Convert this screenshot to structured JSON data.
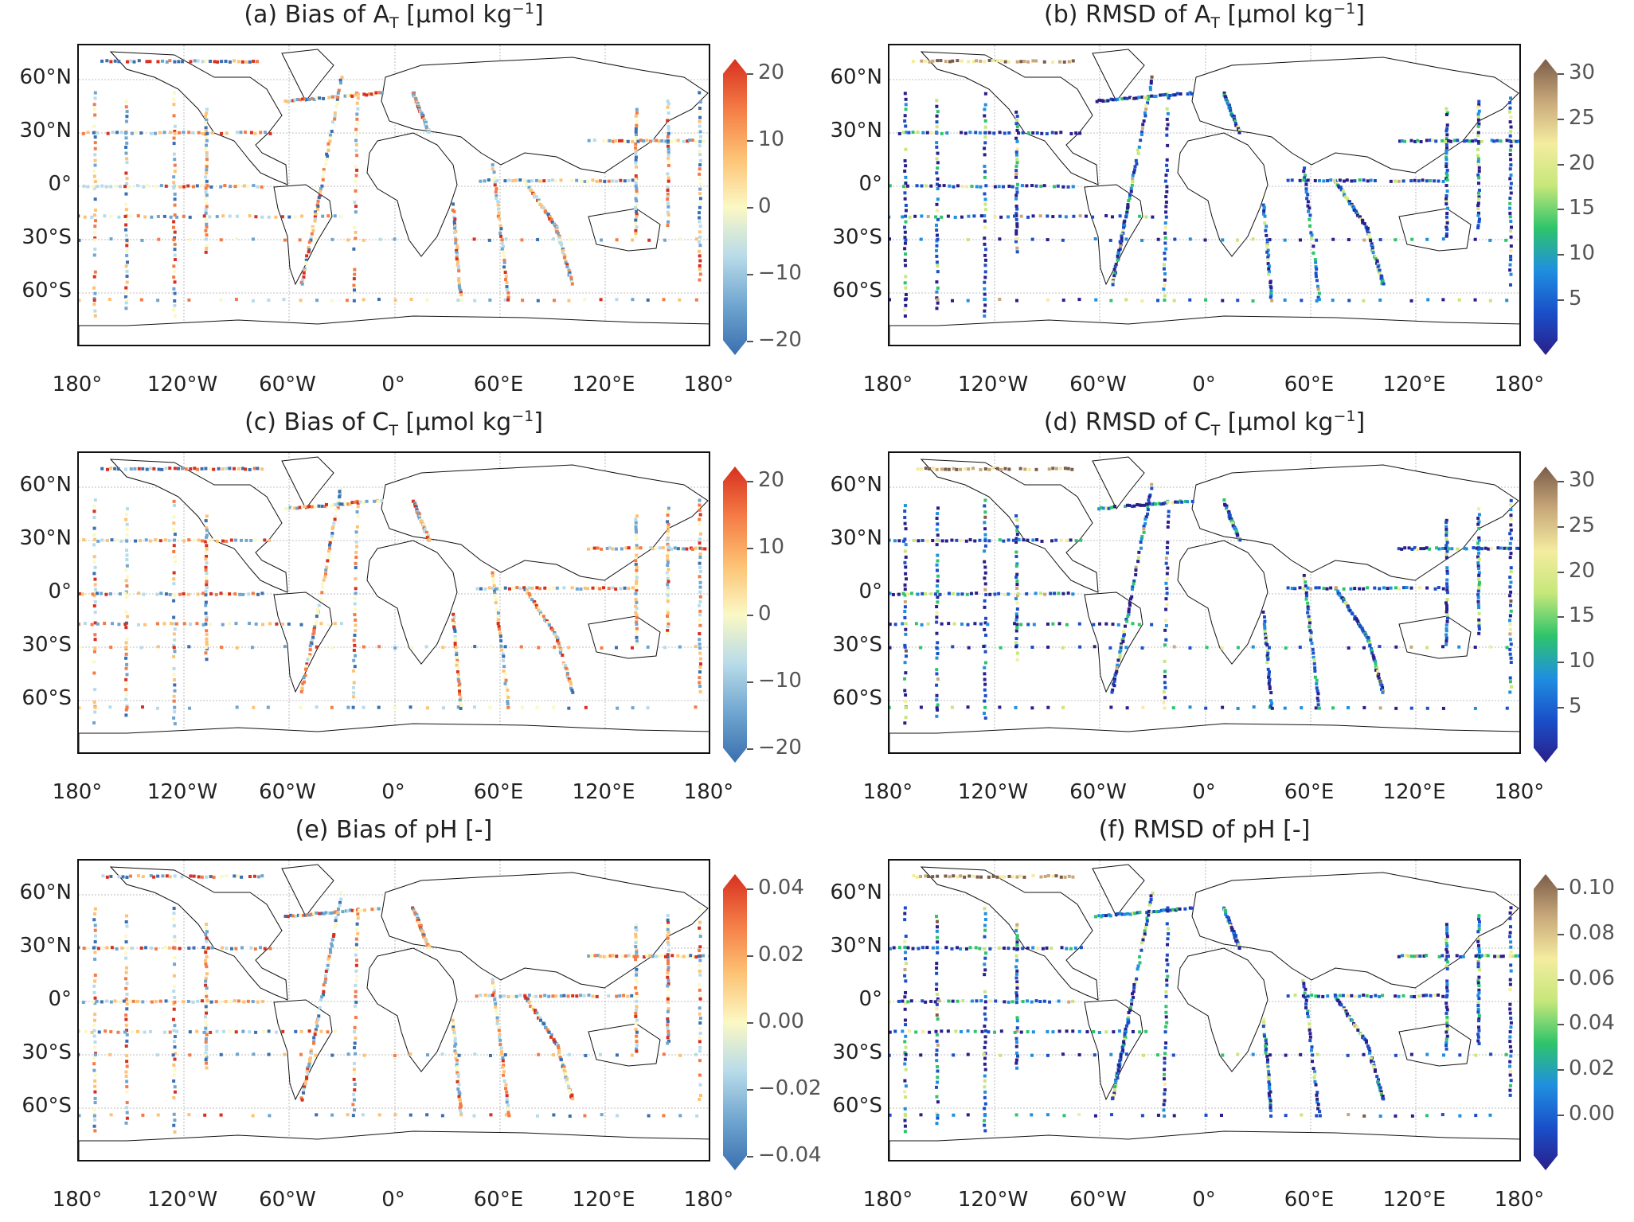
{
  "panels": [
    {
      "id": "a",
      "title_pre": "(a) Bias of A",
      "title_sub": "T",
      "title_mid": " [μmol kg",
      "title_sup": "−1",
      "title_post": "]",
      "cmap": "bias",
      "ticks": [
        "20",
        "10",
        "0",
        "−10",
        "−20"
      ]
    },
    {
      "id": "b",
      "title_pre": "(b) RMSD of A",
      "title_sub": "T",
      "title_mid": " [μmol kg",
      "title_sup": "−1",
      "title_post": "]",
      "cmap": "rmsd",
      "ticks": [
        "30",
        "25",
        "20",
        "15",
        "10",
        "5"
      ]
    },
    {
      "id": "c",
      "title_pre": "(c) Bias of C",
      "title_sub": "T",
      "title_mid": " [μmol kg",
      "title_sup": "−1",
      "title_post": "]",
      "cmap": "bias",
      "ticks": [
        "20",
        "10",
        "0",
        "−10",
        "−20"
      ]
    },
    {
      "id": "d",
      "title_pre": "(d) RMSD of C",
      "title_sub": "T",
      "title_mid": " [μmol kg",
      "title_sup": "−1",
      "title_post": "]",
      "cmap": "rmsd",
      "ticks": [
        "30",
        "25",
        "20",
        "15",
        "10",
        "5"
      ]
    },
    {
      "id": "e",
      "title_pre": "(e) Bias of pH [-]",
      "title_sub": "",
      "title_mid": "",
      "title_sup": "",
      "title_post": "",
      "cmap": "bias",
      "ticks": [
        "0.04",
        "0.02",
        "0.00",
        "−0.02",
        "−0.04"
      ]
    },
    {
      "id": "f",
      "title_pre": "(f) RMSD of pH [-]",
      "title_sub": "",
      "title_mid": "",
      "title_sup": "",
      "title_post": "",
      "cmap": "rmsd",
      "ticks": [
        "0.10",
        "0.08",
        "0.06",
        "0.04",
        "0.02",
        "0.00"
      ]
    }
  ],
  "lat_labels": [
    "60°N",
    "30°N",
    "0°",
    "30°S",
    "60°S"
  ],
  "lon_labels": [
    "180°",
    "120°W",
    "60°W",
    "0°",
    "60°E",
    "120°E",
    "180°"
  ],
  "colors": {
    "bias": [
      "#3a6fb0",
      "#6fa5cf",
      "#b8dbe9",
      "#fbf8c4",
      "#fdc274",
      "#f47b45",
      "#d7301f"
    ],
    "rmsd": [
      "#2a1f8a",
      "#1a4fc9",
      "#1f8fe0",
      "#2fc46a",
      "#c6e77a",
      "#f4eca0",
      "#c8a87a",
      "#7a5c48"
    ]
  }
}
